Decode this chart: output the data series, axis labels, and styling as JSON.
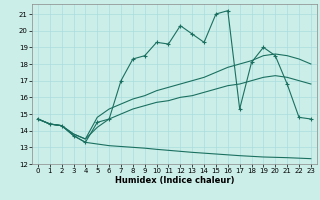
{
  "xlabel": "Humidex (Indice chaleur)",
  "bg_color": "#cceee8",
  "grid_color": "#aadddd",
  "line_color": "#1a7060",
  "xlim": [
    -0.5,
    23.5
  ],
  "ylim": [
    12,
    21.6
  ],
  "yticks": [
    12,
    13,
    14,
    15,
    16,
    17,
    18,
    19,
    20,
    21
  ],
  "xticks": [
    0,
    1,
    2,
    3,
    4,
    5,
    6,
    7,
    8,
    9,
    10,
    11,
    12,
    13,
    14,
    15,
    16,
    17,
    18,
    19,
    20,
    21,
    22,
    23
  ],
  "line1_x": [
    0,
    1,
    2,
    3,
    4,
    5,
    6,
    7,
    8,
    9,
    10,
    11,
    12,
    13,
    14,
    15,
    16,
    17,
    18,
    19,
    20,
    21,
    22,
    23
  ],
  "line1_y": [
    14.7,
    14.4,
    14.3,
    13.7,
    13.3,
    14.5,
    14.7,
    17.0,
    18.3,
    18.5,
    19.3,
    19.2,
    20.3,
    19.8,
    19.3,
    21.0,
    21.2,
    15.3,
    18.1,
    19.0,
    18.5,
    16.8,
    14.8,
    14.7
  ],
  "line2_x": [
    0,
    1,
    2,
    3,
    4,
    5,
    6,
    7,
    8,
    9,
    10,
    11,
    12,
    13,
    14,
    15,
    16,
    17,
    18,
    19,
    20,
    21,
    22,
    23
  ],
  "line2_y": [
    14.7,
    14.4,
    14.3,
    13.8,
    13.5,
    14.8,
    15.3,
    15.6,
    15.9,
    16.1,
    16.4,
    16.6,
    16.8,
    17.0,
    17.2,
    17.5,
    17.8,
    18.0,
    18.2,
    18.5,
    18.6,
    18.5,
    18.3,
    18.0
  ],
  "line3_x": [
    0,
    1,
    2,
    3,
    4,
    5,
    6,
    7,
    8,
    9,
    10,
    11,
    12,
    13,
    14,
    15,
    16,
    17,
    18,
    19,
    20,
    21,
    22,
    23
  ],
  "line3_y": [
    14.7,
    14.4,
    14.3,
    13.8,
    13.5,
    14.2,
    14.7,
    15.0,
    15.3,
    15.5,
    15.7,
    15.8,
    16.0,
    16.1,
    16.3,
    16.5,
    16.7,
    16.8,
    17.0,
    17.2,
    17.3,
    17.2,
    17.0,
    16.8
  ],
  "line4_x": [
    0,
    1,
    2,
    3,
    4,
    5,
    6,
    7,
    8,
    9,
    10,
    11,
    12,
    13,
    14,
    15,
    16,
    17,
    18,
    19,
    20,
    21,
    22,
    23
  ],
  "line4_y": [
    14.7,
    14.4,
    14.3,
    13.7,
    13.3,
    13.2,
    13.1,
    13.05,
    13.0,
    12.95,
    12.88,
    12.82,
    12.76,
    12.7,
    12.65,
    12.6,
    12.55,
    12.5,
    12.46,
    12.42,
    12.4,
    12.38,
    12.35,
    12.32
  ]
}
